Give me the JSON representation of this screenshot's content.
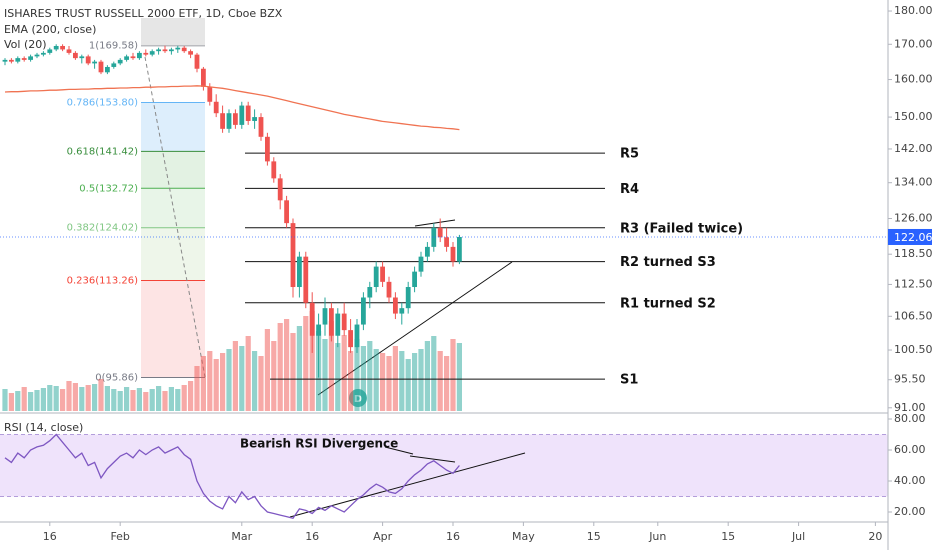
{
  "chart_data": {
    "type": "candlestick",
    "title": "ISHARES TRUST RUSSELL 2000 ETF, 1D, Cboe BZX",
    "ema_label": "EMA (200, close)",
    "volume_label": "Vol (20)",
    "rsi_label": "RSI (14, close)",
    "annotation": "Bearish RSI Divergence",
    "marker": "D",
    "colors": {
      "up": "#26a69a",
      "down": "#ef5350",
      "ema": "#f07352",
      "rsi": "#7e57c2",
      "last": "#2962ff"
    },
    "ylog": true,
    "ylim": [
      90.5,
      182
    ],
    "yticks": [
      {
        "value": 180,
        "label": "180.00"
      },
      {
        "value": 170,
        "label": "170.00"
      },
      {
        "value": 160,
        "label": "160.00"
      },
      {
        "value": 150,
        "label": "150.00"
      },
      {
        "value": 142,
        "label": "142.00"
      },
      {
        "value": 134,
        "label": "134.00"
      },
      {
        "value": 126,
        "label": "126.00"
      },
      {
        "value": 118.5,
        "label": "118.50"
      },
      {
        "value": 112.5,
        "label": "112.50"
      },
      {
        "value": 106.5,
        "label": "106.50"
      },
      {
        "value": 100.5,
        "label": "100.50"
      },
      {
        "value": 95.5,
        "label": "95.50"
      },
      {
        "value": 91,
        "label": "91.00"
      }
    ],
    "xlim": [
      -0.78,
      137.97
    ],
    "xticks": [
      {
        "value": 7,
        "label": "16"
      },
      {
        "value": 18,
        "label": "Feb"
      },
      {
        "value": 37,
        "label": "Mar"
      },
      {
        "value": 48,
        "label": "16"
      },
      {
        "value": 59,
        "label": "Apr"
      },
      {
        "value": 70,
        "label": "16"
      },
      {
        "value": 81,
        "label": "May"
      },
      {
        "value": 92,
        "label": "15"
      },
      {
        "value": 102,
        "label": "Jun"
      },
      {
        "value": 113,
        "label": "15"
      },
      {
        "value": 124,
        "label": "Jul"
      },
      {
        "value": 136,
        "label": "20"
      }
    ],
    "candles": [
      [
        165,
        166,
        164,
        165.5
      ],
      [
        165.5,
        166,
        164.5,
        165
      ],
      [
        165,
        166.5,
        164.5,
        166
      ],
      [
        166,
        166.5,
        165,
        165.5
      ],
      [
        165.5,
        167,
        165,
        166.5
      ],
      [
        166.5,
        167.5,
        166,
        167
      ],
      [
        167,
        168,
        166.5,
        167.5
      ],
      [
        167.5,
        169,
        167,
        168.5
      ],
      [
        168.5,
        170,
        168,
        169.5
      ],
      [
        169.5,
        170,
        168,
        168.5
      ],
      [
        168.5,
        169.5,
        167,
        167.5
      ],
      [
        167.5,
        168,
        165.5,
        166
      ],
      [
        166,
        167,
        164.5,
        166.5
      ],
      [
        166.5,
        167,
        164,
        164.5
      ],
      [
        164.5,
        165.5,
        163,
        165
      ],
      [
        165,
        165.5,
        161.5,
        162
      ],
      [
        162,
        164,
        161.5,
        163.5
      ],
      [
        163.5,
        165,
        163,
        164.5
      ],
      [
        164.5,
        166,
        164,
        165.5
      ],
      [
        165.5,
        167,
        165,
        166.5
      ],
      [
        166.5,
        167.5,
        165.5,
        166
      ],
      [
        166,
        168,
        165.5,
        167.5
      ],
      [
        167.5,
        168.5,
        166.5,
        167
      ],
      [
        167,
        168.5,
        166.5,
        168
      ],
      [
        168,
        169,
        167,
        168.5
      ],
      [
        168.5,
        169.6,
        167.5,
        168
      ],
      [
        168,
        169,
        167,
        168.5
      ],
      [
        168.5,
        169.58,
        167.5,
        169
      ],
      [
        169,
        169.5,
        167.5,
        168
      ],
      [
        168,
        168.5,
        166,
        167
      ],
      [
        167,
        167.5,
        162,
        163
      ],
      [
        163,
        163.5,
        157,
        158
      ],
      [
        158,
        159,
        153,
        154
      ],
      [
        154,
        156,
        150,
        151
      ],
      [
        151,
        153,
        146,
        147
      ],
      [
        147,
        152,
        146,
        151
      ],
      [
        151,
        152,
        147,
        148
      ],
      [
        148,
        154,
        147,
        153
      ],
      [
        153,
        154,
        148,
        149
      ],
      [
        149,
        152,
        147,
        150
      ],
      [
        150,
        151,
        144,
        145
      ],
      [
        145,
        146,
        138,
        139
      ],
      [
        139,
        140,
        134,
        135
      ],
      [
        135,
        136,
        128,
        130
      ],
      [
        130,
        131,
        124,
        125
      ],
      [
        125,
        126,
        110,
        112
      ],
      [
        112,
        119,
        110,
        118
      ],
      [
        118,
        119,
        108,
        109
      ],
      [
        109,
        111,
        100,
        103
      ],
      [
        103,
        107,
        95.86,
        105
      ],
      [
        105,
        110,
        103,
        108
      ],
      [
        108,
        109,
        102,
        103
      ],
      [
        103,
        108,
        101,
        107
      ],
      [
        107,
        109,
        103,
        104
      ],
      [
        104,
        106,
        100,
        101
      ],
      [
        101,
        106,
        100,
        105
      ],
      [
        105,
        111,
        104,
        110
      ],
      [
        110,
        113,
        108,
        112
      ],
      [
        112,
        117,
        111,
        116
      ],
      [
        116,
        117,
        112,
        113
      ],
      [
        113,
        114,
        109,
        110
      ],
      [
        110,
        111,
        106,
        107
      ],
      [
        107,
        109,
        105,
        108
      ],
      [
        108,
        113,
        107,
        112
      ],
      [
        112,
        116,
        111,
        115
      ],
      [
        115,
        119,
        114,
        118
      ],
      [
        118,
        121,
        117,
        120
      ],
      [
        120,
        125,
        119,
        124
      ],
      [
        124,
        126,
        121,
        122
      ],
      [
        122,
        124,
        119,
        120
      ],
      [
        120,
        121,
        116,
        117
      ],
      [
        117,
        122.5,
        116.5,
        122.06
      ]
    ],
    "volume": [
      22,
      18,
      20,
      24,
      19,
      21,
      23,
      26,
      25,
      22,
      30,
      28,
      24,
      26,
      27,
      32,
      25,
      22,
      20,
      24,
      21,
      23,
      19,
      22,
      25,
      20,
      24,
      22,
      26,
      30,
      45,
      55,
      60,
      52,
      58,
      62,
      70,
      65,
      75,
      60,
      55,
      82,
      70,
      88,
      92,
      78,
      85,
      95,
      100,
      80,
      72,
      90,
      68,
      76,
      60,
      72,
      65,
      70,
      62,
      58,
      55,
      65,
      60,
      52,
      58,
      62,
      70,
      75,
      60,
      55,
      72,
      68
    ],
    "ema": [
      156.6,
      156.7,
      156.7,
      156.8,
      156.9,
      156.9,
      157.0,
      157.1,
      157.1,
      157.2,
      157.3,
      157.3,
      157.4,
      157.4,
      157.5,
      157.5,
      157.6,
      157.6,
      157.7,
      157.7,
      157.8,
      157.8,
      157.9,
      157.9,
      158.0,
      158.0,
      158.1,
      158.1,
      158.2,
      158.2,
      158.3,
      158.2,
      158.0,
      157.8,
      157.6,
      157.3,
      157.0,
      156.7,
      156.4,
      156.1,
      155.8,
      155.5,
      155.1,
      154.7,
      154.3,
      153.9,
      153.5,
      153.1,
      152.7,
      152.3,
      151.9,
      151.5,
      151.1,
      150.7,
      150.4,
      150.1,
      149.8,
      149.5,
      149.2,
      148.9,
      148.7,
      148.5,
      148.3,
      148.1,
      147.9,
      147.7,
      147.6,
      147.4,
      147.3,
      147.1,
      147.0,
      146.8
    ],
    "rsi": [
      55,
      52,
      58,
      55,
      60,
      62,
      63,
      66,
      70,
      65,
      60,
      55,
      58,
      50,
      52,
      42,
      48,
      52,
      56,
      58,
      55,
      60,
      57,
      60,
      62,
      58,
      60,
      62,
      57,
      54,
      40,
      32,
      27,
      24,
      22,
      30,
      26,
      33,
      28,
      30,
      24,
      20,
      19,
      18,
      17,
      16,
      22,
      21,
      19,
      23,
      21,
      24,
      22,
      20,
      24,
      28,
      31,
      35,
      38,
      36,
      33,
      32,
      35,
      40,
      44,
      47,
      51,
      53,
      50,
      47,
      45,
      50
    ],
    "rsi_ylim": [
      15,
      82
    ],
    "rsi_yticks": [
      {
        "value": 80,
        "label": "80.00"
      },
      {
        "value": 60,
        "label": "60.00"
      },
      {
        "value": 40,
        "label": "40.00"
      },
      {
        "value": 20,
        "label": "20.00"
      }
    ],
    "rsi_band": [
      30,
      70
    ],
    "fib": [
      {
        "label": "1(169.58)",
        "value": 169.58,
        "color": "#787b86",
        "zone": "#e0e0e0"
      },
      {
        "label": "0.786(153.80)",
        "value": 153.8,
        "color": "#64b5f6",
        "zone": "#ffffff"
      },
      {
        "label": "0.618(141.42)",
        "value": 141.42,
        "color": "#388e3c",
        "zone": "#ddeefc"
      },
      {
        "label": "0.5(132.72)",
        "value": 132.72,
        "color": "#4caf50",
        "zone": "#e3f2e3"
      },
      {
        "label": "0.382(124.02)",
        "value": 124.02,
        "color": "#81c784",
        "zone": "#e8f5e8"
      },
      {
        "label": "0.236(113.26)",
        "value": 113.26,
        "color": "#f44336",
        "zone": "#eef6ea"
      },
      {
        "label": "0(95.86)",
        "value": 95.86,
        "color": "#787b86",
        "zone": "#fde4e4"
      }
    ],
    "levels": [
      {
        "label": "R5",
        "value": 141.0
      },
      {
        "label": "R4",
        "value": 132.7
      },
      {
        "label": "R3 (Failed twice)",
        "value": 124.0
      },
      {
        "label": "R2 turned S3",
        "value": 117.0
      },
      {
        "label": "R1 turned S2",
        "value": 109.0
      },
      {
        "label": "S1",
        "value": 95.6
      }
    ]
  }
}
